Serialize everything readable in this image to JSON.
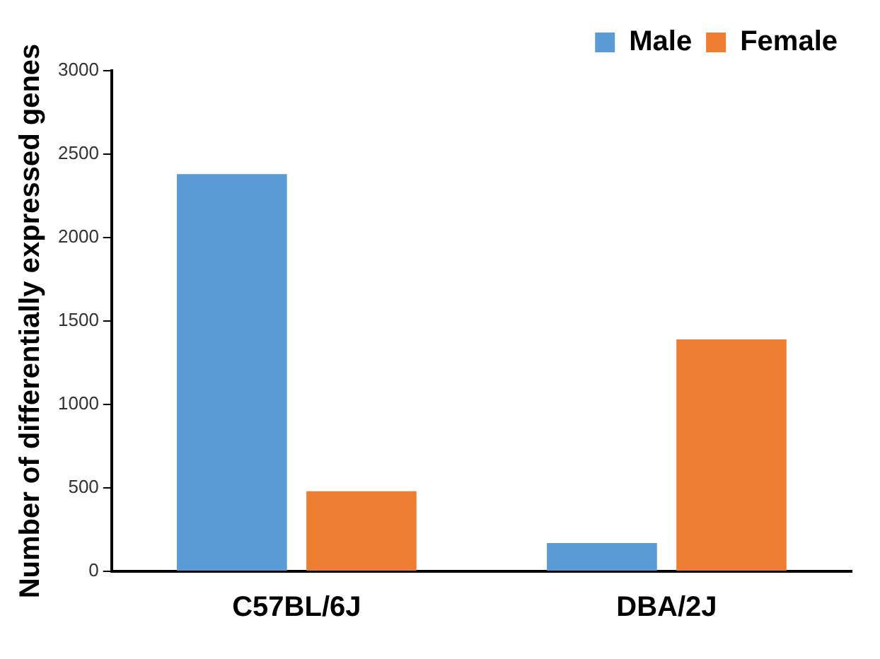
{
  "chart_data": {
    "type": "bar",
    "ylabel": "Number of differentially expressed genes",
    "categories": [
      "C57BL/6J",
      "DBA/2J"
    ],
    "series": [
      {
        "name": "Male",
        "color": "#5b9bd5",
        "values": [
          2380,
          170
        ]
      },
      {
        "name": "Female",
        "color": "#ed7d31",
        "values": [
          480,
          1390
        ]
      }
    ],
    "ylim": [
      0,
      3000
    ],
    "yticks": [
      0,
      500,
      1000,
      1500,
      2000,
      2500,
      3000
    ],
    "grid": false,
    "legend": "top right"
  }
}
